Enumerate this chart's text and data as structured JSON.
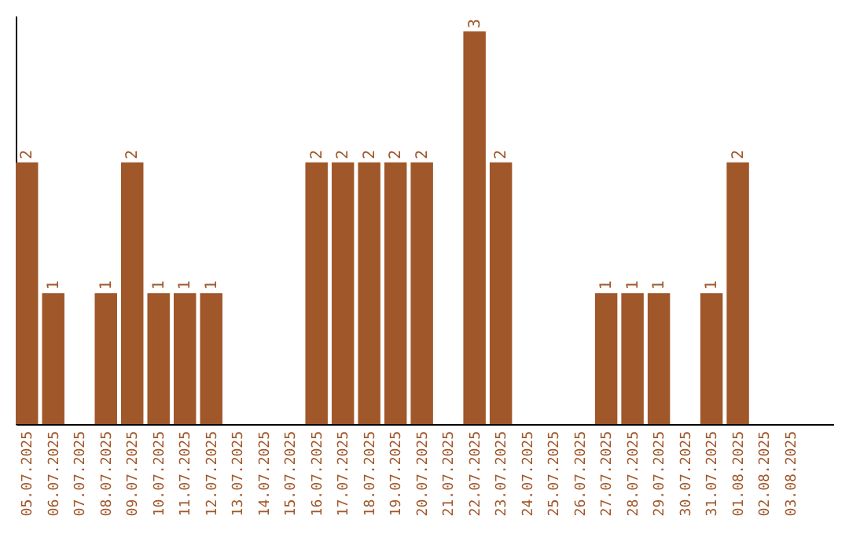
{
  "chart_data": {
    "type": "bar",
    "categories": [
      "05.07.2025",
      "06.07.2025",
      "07.07.2025",
      "08.07.2025",
      "09.07.2025",
      "10.07.2025",
      "11.07.2025",
      "12.07.2025",
      "13.07.2025",
      "14.07.2025",
      "15.07.2025",
      "16.07.2025",
      "17.07.2025",
      "18.07.2025",
      "19.07.2025",
      "20.07.2025",
      "21.07.2025",
      "22.07.2025",
      "23.07.2025",
      "24.07.2025",
      "25.07.2025",
      "26.07.2025",
      "27.07.2025",
      "28.07.2025",
      "29.07.2025",
      "30.07.2025",
      "31.07.2025",
      "01.08.2025",
      "02.08.2025",
      "03.08.2025"
    ],
    "values": [
      2,
      1,
      0,
      1,
      2,
      1,
      1,
      1,
      0,
      0,
      0,
      2,
      2,
      2,
      2,
      2,
      0,
      3,
      2,
      0,
      0,
      0,
      1,
      1,
      1,
      0,
      1,
      2,
      0,
      0
    ],
    "value_labels": [
      "2",
      "1",
      null,
      "1",
      "2",
      "1",
      "1",
      "1",
      null,
      null,
      null,
      "2",
      "2",
      "2",
      "2",
      "2",
      null,
      "3",
      "2",
      null,
      null,
      null,
      "1",
      "1",
      "1",
      null,
      "1",
      "2",
      null,
      null
    ],
    "color": "#a0572a",
    "ylim": [
      0,
      3.12
    ],
    "tick_labels": "x",
    "grid": false
  }
}
